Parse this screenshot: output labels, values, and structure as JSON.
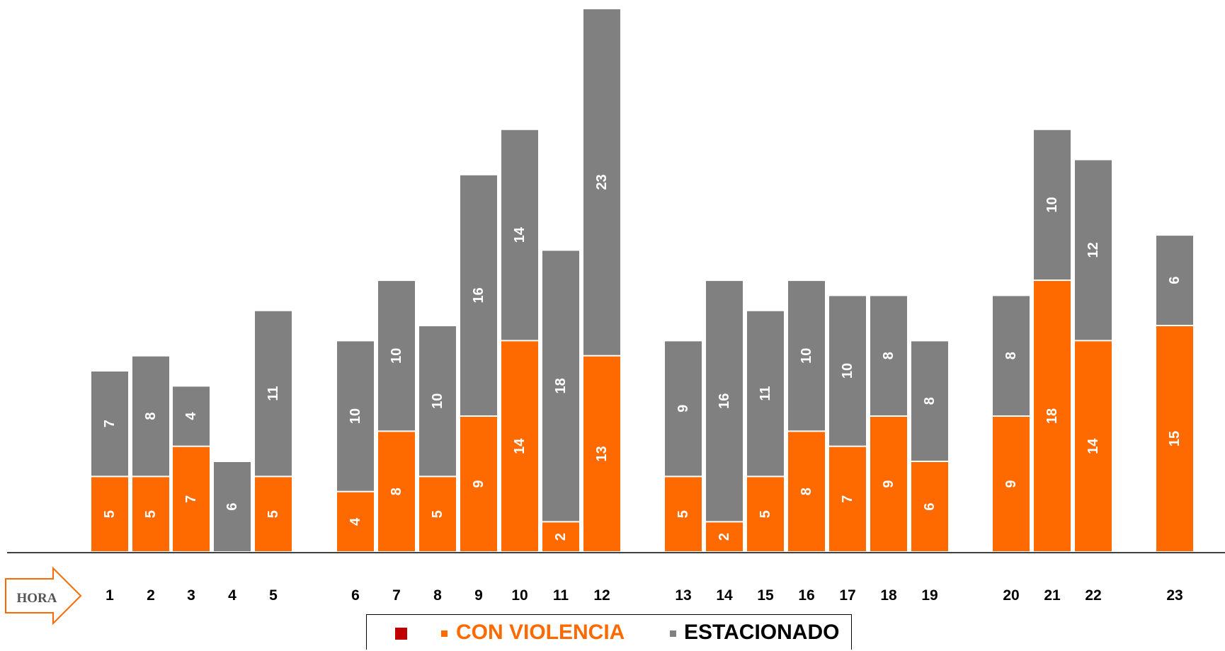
{
  "chart_data": {
    "type": "bar",
    "stacked": true,
    "categories": [
      "1",
      "2",
      "3",
      "4",
      "5",
      "6",
      "7",
      "8",
      "9",
      "10",
      "11",
      "12",
      "13",
      "14",
      "15",
      "16",
      "17",
      "18",
      "19",
      "20",
      "21",
      "22",
      "23"
    ],
    "series": [
      {
        "name": "CON VIOLENCIA",
        "color": "#ff6a00",
        "values": [
          5,
          5,
          7,
          0,
          5,
          4,
          8,
          5,
          9,
          14,
          2,
          13,
          5,
          2,
          5,
          8,
          7,
          9,
          6,
          9,
          18,
          14,
          15
        ]
      },
      {
        "name": "ESTACIONADO",
        "color": "#808080",
        "values": [
          7,
          8,
          4,
          6,
          11,
          10,
          10,
          10,
          16,
          14,
          18,
          23,
          9,
          16,
          11,
          10,
          10,
          8,
          8,
          8,
          10,
          12,
          6
        ]
      }
    ],
    "xlabel": "HORA",
    "ylim": [
      0,
      36
    ],
    "grid": false,
    "legend_position": "bottom"
  },
  "legend": {
    "items": [
      {
        "label": "",
        "color": "#c00000"
      },
      {
        "label": "CON VIOLENCIA",
        "color": "#ff6a00"
      },
      {
        "label": "ESTACIONADO",
        "color": "#808080"
      }
    ]
  },
  "colors": {
    "accent": "#ff6a00",
    "stationed": "#808080",
    "legend_marker_red": "#c00000",
    "value_text": "#ffffff"
  }
}
